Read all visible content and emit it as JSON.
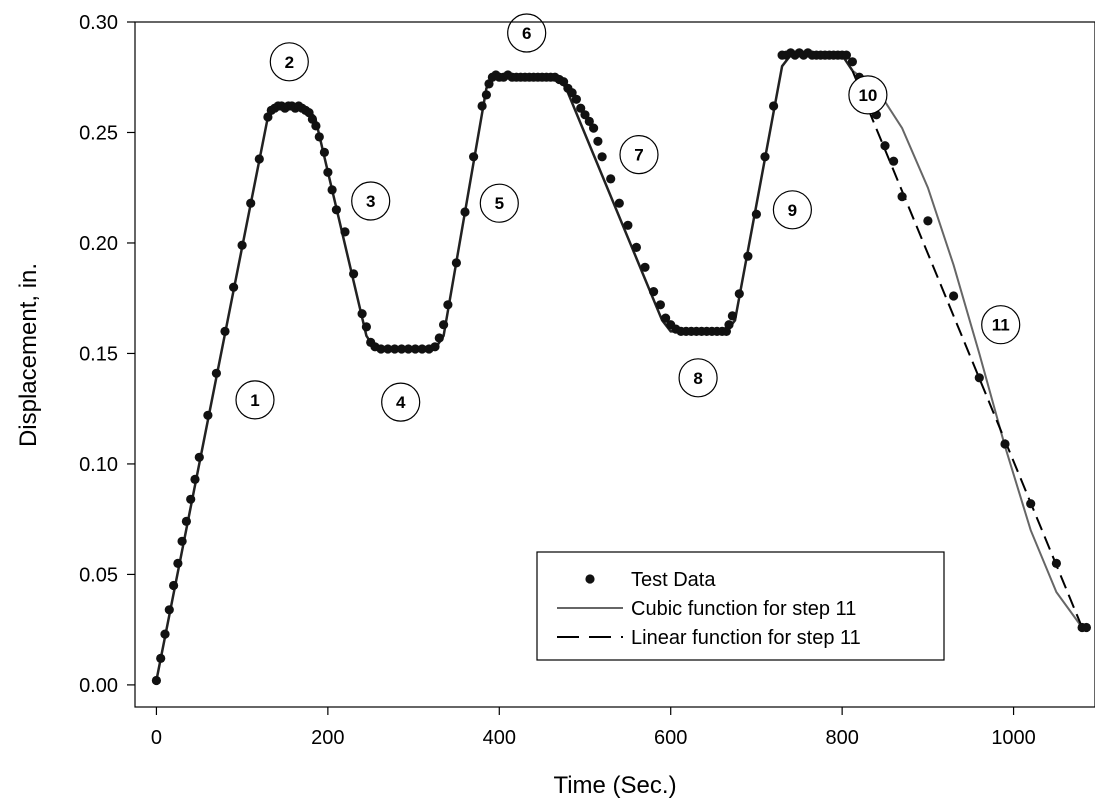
{
  "chart_data": {
    "type": "scatter",
    "title": "",
    "xlabel": "Time (Sec.)",
    "ylabel": "Displacement, in.",
    "xlim": [
      -25,
      1095
    ],
    "ylim": [
      -0.01,
      0.3
    ],
    "xticks": [
      0,
      200,
      400,
      600,
      800,
      1000
    ],
    "xtick_labels": [
      "0",
      "200",
      "400",
      "600",
      "800",
      "1000"
    ],
    "yticks": [
      0.0,
      0.05,
      0.1,
      0.15,
      0.2,
      0.25,
      0.3
    ],
    "ytick_labels": [
      "0.00",
      "0.05",
      "0.10",
      "0.15",
      "0.20",
      "0.25",
      "0.30"
    ],
    "grid": false,
    "legend_position": "bottom-right",
    "legend": [
      {
        "label": "Test Data",
        "style": "marker"
      },
      {
        "label": "Cubic function for step 11",
        "style": "solid-gray"
      },
      {
        "label": "Linear function for step 11",
        "style": "dashed-black"
      }
    ],
    "colors": {
      "test_data": "#111111",
      "cubic": "#666666",
      "linear": "#000000",
      "fit": "#222222"
    },
    "fit_path": {
      "x": [
        0,
        130,
        140,
        175,
        185,
        245,
        255,
        325,
        335,
        385,
        395,
        468,
        478,
        590,
        600,
        665,
        675,
        730,
        740,
        800,
        812
      ],
      "y": [
        0.002,
        0.257,
        0.261,
        0.261,
        0.257,
        0.158,
        0.152,
        0.152,
        0.158,
        0.27,
        0.275,
        0.275,
        0.27,
        0.165,
        0.16,
        0.16,
        0.165,
        0.28,
        0.285,
        0.285,
        0.278
      ]
    },
    "series": [
      {
        "name": "Cubic function for step 11",
        "x": [
          812,
          840,
          870,
          900,
          930,
          960,
          990,
          1020,
          1050,
          1080
        ],
        "y": [
          0.278,
          0.27,
          0.252,
          0.225,
          0.19,
          0.15,
          0.108,
          0.07,
          0.042,
          0.026
        ]
      },
      {
        "name": "Linear function for step 11",
        "x": [
          812,
          1080
        ],
        "y": [
          0.278,
          0.026
        ]
      },
      {
        "name": "Test Data",
        "x": [
          0,
          5,
          10,
          15,
          20,
          25,
          30,
          35,
          40,
          45,
          50,
          60,
          70,
          80,
          90,
          100,
          110,
          120,
          130,
          134,
          138,
          142,
          146,
          150,
          154,
          158,
          162,
          166,
          170,
          174,
          178,
          182,
          186,
          190,
          196,
          200,
          205,
          210,
          220,
          230,
          240,
          245,
          250,
          255,
          262,
          270,
          278,
          286,
          294,
          302,
          310,
          318,
          325,
          330,
          335,
          340,
          350,
          360,
          370,
          380,
          385,
          388,
          392,
          396,
          400,
          405,
          410,
          415,
          420,
          425,
          430,
          435,
          440,
          445,
          450,
          455,
          460,
          465,
          470,
          475,
          480,
          485,
          490,
          495,
          500,
          505,
          510,
          515,
          520,
          530,
          540,
          550,
          560,
          570,
          580,
          588,
          594,
          600,
          606,
          612,
          618,
          624,
          630,
          636,
          642,
          648,
          654,
          660,
          665,
          668,
          672,
          680,
          690,
          700,
          710,
          720,
          730,
          735,
          740,
          745,
          750,
          755,
          760,
          765,
          770,
          775,
          780,
          785,
          790,
          795,
          800,
          805,
          812,
          820,
          830,
          840,
          850,
          860,
          870,
          900,
          930,
          960,
          990,
          1020,
          1050,
          1080,
          1085
        ],
        "y": [
          0.002,
          0.012,
          0.023,
          0.034,
          0.045,
          0.055,
          0.065,
          0.074,
          0.084,
          0.093,
          0.103,
          0.122,
          0.141,
          0.16,
          0.18,
          0.199,
          0.218,
          0.238,
          0.257,
          0.26,
          0.261,
          0.262,
          0.262,
          0.261,
          0.262,
          0.262,
          0.261,
          0.262,
          0.261,
          0.26,
          0.259,
          0.256,
          0.253,
          0.248,
          0.241,
          0.232,
          0.224,
          0.215,
          0.205,
          0.186,
          0.168,
          0.162,
          0.155,
          0.153,
          0.152,
          0.152,
          0.152,
          0.152,
          0.152,
          0.152,
          0.152,
          0.152,
          0.153,
          0.157,
          0.163,
          0.172,
          0.191,
          0.214,
          0.239,
          0.262,
          0.267,
          0.272,
          0.275,
          0.276,
          0.275,
          0.275,
          0.276,
          0.275,
          0.275,
          0.275,
          0.275,
          0.275,
          0.275,
          0.275,
          0.275,
          0.275,
          0.275,
          0.275,
          0.274,
          0.273,
          0.27,
          0.268,
          0.265,
          0.261,
          0.258,
          0.255,
          0.252,
          0.246,
          0.239,
          0.229,
          0.218,
          0.208,
          0.198,
          0.189,
          0.178,
          0.172,
          0.166,
          0.163,
          0.161,
          0.16,
          0.16,
          0.16,
          0.16,
          0.16,
          0.16,
          0.16,
          0.16,
          0.16,
          0.16,
          0.163,
          0.167,
          0.177,
          0.194,
          0.213,
          0.239,
          0.262,
          0.285,
          0.285,
          0.286,
          0.285,
          0.286,
          0.285,
          0.286,
          0.285,
          0.285,
          0.285,
          0.285,
          0.285,
          0.285,
          0.285,
          0.285,
          0.285,
          0.282,
          0.275,
          0.267,
          0.258,
          0.244,
          0.237,
          0.221,
          0.21,
          0.176,
          0.139,
          0.109,
          0.082,
          0.055,
          0.026,
          0.026
        ]
      }
    ],
    "annotations": [
      {
        "text": "1",
        "x": 115,
        "y": 0.129
      },
      {
        "text": "2",
        "x": 155,
        "y": 0.282
      },
      {
        "text": "3",
        "x": 250,
        "y": 0.219
      },
      {
        "text": "4",
        "x": 285,
        "y": 0.128
      },
      {
        "text": "5",
        "x": 400,
        "y": 0.218
      },
      {
        "text": "6",
        "x": 432,
        "y": 0.295
      },
      {
        "text": "7",
        "x": 563,
        "y": 0.24
      },
      {
        "text": "8",
        "x": 632,
        "y": 0.139
      },
      {
        "text": "9",
        "x": 742,
        "y": 0.215
      },
      {
        "text": "10",
        "x": 830,
        "y": 0.267
      },
      {
        "text": "11",
        "x": 985,
        "y": 0.163
      }
    ]
  }
}
